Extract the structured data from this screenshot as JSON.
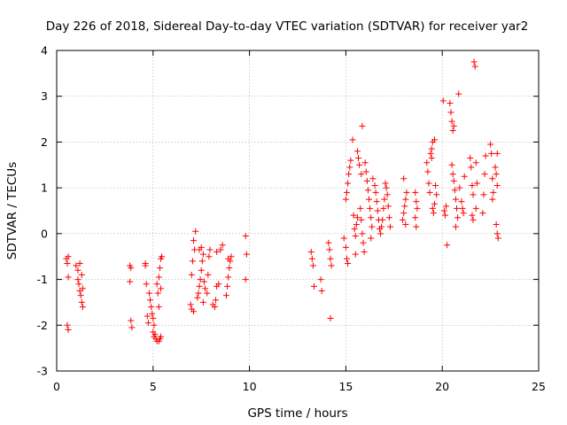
{
  "chart_data": {
    "type": "scatter",
    "title": "Day 226 of 2018, Sidereal Day-to-day VTEC variation (SDTVAR) for receiver yar2",
    "xlabel": "GPS time / hours",
    "ylabel": "SDTVAR / TECUs",
    "xlim": [
      0,
      25
    ],
    "ylim": [
      -3,
      4
    ],
    "xticks": [
      0,
      5,
      10,
      15,
      20,
      25
    ],
    "yticks": [
      -3,
      -2,
      -1,
      0,
      1,
      2,
      3,
      4
    ],
    "grid": true,
    "marker": "+",
    "color": "#ff0000",
    "series": [
      {
        "name": "SDTVAR",
        "points": [
          [
            0.5,
            -0.55
          ],
          [
            0.55,
            -0.65
          ],
          [
            0.6,
            -0.5
          ],
          [
            0.6,
            -0.95
          ],
          [
            0.55,
            -2.0
          ],
          [
            0.6,
            -2.1
          ],
          [
            1.0,
            -0.7
          ],
          [
            1.1,
            -0.8
          ],
          [
            1.1,
            -1.0
          ],
          [
            1.15,
            -1.1
          ],
          [
            1.2,
            -1.25
          ],
          [
            1.25,
            -1.35
          ],
          [
            1.3,
            -1.5
          ],
          [
            1.35,
            -1.6
          ],
          [
            1.2,
            -0.65
          ],
          [
            1.3,
            -0.9
          ],
          [
            1.35,
            -1.2
          ],
          [
            3.8,
            -0.7
          ],
          [
            3.85,
            -0.75
          ],
          [
            3.8,
            -1.05
          ],
          [
            3.85,
            -1.9
          ],
          [
            3.9,
            -2.05
          ],
          [
            4.6,
            -0.65
          ],
          [
            4.6,
            -0.7
          ],
          [
            4.65,
            -1.1
          ],
          [
            4.7,
            -1.8
          ],
          [
            4.75,
            -1.95
          ],
          [
            4.8,
            -1.3
          ],
          [
            4.85,
            -1.45
          ],
          [
            4.9,
            -1.6
          ],
          [
            4.95,
            -1.75
          ],
          [
            5.0,
            -1.85
          ],
          [
            5.05,
            -2.0
          ],
          [
            5.0,
            -2.15
          ],
          [
            5.05,
            -2.25
          ],
          [
            5.1,
            -2.2
          ],
          [
            5.15,
            -2.3
          ],
          [
            5.2,
            -2.35
          ],
          [
            5.3,
            -2.35
          ],
          [
            5.35,
            -2.3
          ],
          [
            5.4,
            -2.25
          ],
          [
            5.2,
            -1.1
          ],
          [
            5.25,
            -1.3
          ],
          [
            5.3,
            -0.95
          ],
          [
            5.35,
            -0.75
          ],
          [
            5.4,
            -0.55
          ],
          [
            5.45,
            -0.5
          ],
          [
            5.3,
            -1.6
          ],
          [
            5.4,
            -1.2
          ],
          [
            6.95,
            -1.55
          ],
          [
            7.0,
            -1.65
          ],
          [
            7.1,
            -1.7
          ],
          [
            7.0,
            -0.9
          ],
          [
            7.05,
            -0.6
          ],
          [
            7.15,
            -0.35
          ],
          [
            7.1,
            -0.15
          ],
          [
            7.2,
            0.05
          ],
          [
            7.3,
            -1.4
          ],
          [
            7.35,
            -1.3
          ],
          [
            7.4,
            -1.15
          ],
          [
            7.45,
            -1.0
          ],
          [
            7.5,
            -0.8
          ],
          [
            7.55,
            -0.6
          ],
          [
            7.4,
            -0.35
          ],
          [
            7.5,
            -0.3
          ],
          [
            7.6,
            -0.45
          ],
          [
            7.65,
            -1.05
          ],
          [
            7.7,
            -1.2
          ],
          [
            7.8,
            -1.3
          ],
          [
            7.85,
            -0.9
          ],
          [
            7.9,
            -0.5
          ],
          [
            7.95,
            -0.35
          ],
          [
            7.6,
            -1.5
          ],
          [
            8.1,
            -1.55
          ],
          [
            8.2,
            -1.6
          ],
          [
            8.25,
            -1.45
          ],
          [
            8.3,
            -1.15
          ],
          [
            8.4,
            -1.1
          ],
          [
            8.5,
            -0.35
          ],
          [
            8.6,
            -0.25
          ],
          [
            8.3,
            -0.4
          ],
          [
            8.8,
            -1.35
          ],
          [
            8.85,
            -1.15
          ],
          [
            8.9,
            -0.95
          ],
          [
            8.95,
            -0.75
          ],
          [
            9.0,
            -0.6
          ],
          [
            9.05,
            -0.5
          ],
          [
            8.9,
            -0.55
          ],
          [
            9.8,
            -0.05
          ],
          [
            9.85,
            -0.45
          ],
          [
            9.8,
            -1.0
          ],
          [
            13.2,
            -0.4
          ],
          [
            13.25,
            -0.55
          ],
          [
            13.3,
            -0.7
          ],
          [
            13.35,
            -1.15
          ],
          [
            13.7,
            -1.0
          ],
          [
            13.75,
            -1.25
          ],
          [
            14.1,
            -0.2
          ],
          [
            14.15,
            -0.35
          ],
          [
            14.2,
            -0.55
          ],
          [
            14.25,
            -0.7
          ],
          [
            14.2,
            -1.85
          ],
          [
            14.9,
            -0.1
          ],
          [
            15.0,
            -0.3
          ],
          [
            15.05,
            -0.55
          ],
          [
            15.1,
            -0.65
          ],
          [
            15.0,
            0.75
          ],
          [
            15.05,
            0.9
          ],
          [
            15.1,
            1.1
          ],
          [
            15.15,
            1.3
          ],
          [
            15.2,
            1.45
          ],
          [
            15.25,
            1.6
          ],
          [
            15.35,
            2.05
          ],
          [
            15.4,
            0.4
          ],
          [
            15.45,
            0.1
          ],
          [
            15.5,
            -0.05
          ],
          [
            15.55,
            0.2
          ],
          [
            15.6,
            0.35
          ],
          [
            15.5,
            -0.45
          ],
          [
            15.6,
            1.8
          ],
          [
            15.65,
            1.65
          ],
          [
            15.7,
            1.5
          ],
          [
            15.8,
            1.3
          ],
          [
            15.75,
            0.55
          ],
          [
            15.8,
            0.3
          ],
          [
            15.85,
            0.0
          ],
          [
            15.9,
            -0.2
          ],
          [
            15.95,
            -0.4
          ],
          [
            15.85,
            2.35
          ],
          [
            16.0,
            1.55
          ],
          [
            16.05,
            1.35
          ],
          [
            16.1,
            1.15
          ],
          [
            16.15,
            0.95
          ],
          [
            16.2,
            0.75
          ],
          [
            16.25,
            0.55
          ],
          [
            16.3,
            0.35
          ],
          [
            16.35,
            0.15
          ],
          [
            16.3,
            -0.1
          ],
          [
            16.4,
            1.2
          ],
          [
            16.5,
            1.05
          ],
          [
            16.55,
            0.9
          ],
          [
            16.6,
            0.7
          ],
          [
            16.65,
            0.5
          ],
          [
            16.7,
            0.3
          ],
          [
            16.75,
            0.1
          ],
          [
            16.8,
            0.0
          ],
          [
            16.85,
            0.15
          ],
          [
            16.9,
            0.3
          ],
          [
            16.95,
            0.55
          ],
          [
            17.0,
            0.75
          ],
          [
            17.05,
            1.1
          ],
          [
            17.1,
            1.0
          ],
          [
            17.15,
            0.85
          ],
          [
            17.2,
            0.6
          ],
          [
            17.25,
            0.35
          ],
          [
            17.3,
            0.15
          ],
          [
            17.95,
            0.3
          ],
          [
            18.0,
            0.45
          ],
          [
            18.05,
            0.6
          ],
          [
            18.1,
            0.75
          ],
          [
            18.15,
            0.9
          ],
          [
            18.0,
            1.2
          ],
          [
            18.1,
            0.2
          ],
          [
            18.6,
            0.9
          ],
          [
            18.65,
            0.7
          ],
          [
            18.7,
            0.55
          ],
          [
            18.6,
            0.35
          ],
          [
            18.65,
            0.15
          ],
          [
            19.2,
            1.55
          ],
          [
            19.25,
            1.35
          ],
          [
            19.3,
            1.1
          ],
          [
            19.35,
            0.9
          ],
          [
            19.4,
            1.75
          ],
          [
            19.45,
            1.85
          ],
          [
            19.5,
            2.0
          ],
          [
            19.6,
            2.05
          ],
          [
            19.5,
            0.55
          ],
          [
            19.55,
            0.45
          ],
          [
            19.6,
            0.65
          ],
          [
            19.65,
            1.05
          ],
          [
            19.7,
            0.85
          ],
          [
            19.45,
            1.65
          ],
          [
            20.05,
            2.9
          ],
          [
            20.1,
            0.5
          ],
          [
            20.15,
            0.4
          ],
          [
            20.2,
            0.6
          ],
          [
            20.25,
            -0.25
          ],
          [
            20.4,
            2.85
          ],
          [
            20.45,
            2.65
          ],
          [
            20.5,
            2.45
          ],
          [
            20.55,
            2.25
          ],
          [
            20.6,
            2.35
          ],
          [
            20.5,
            1.5
          ],
          [
            20.55,
            1.3
          ],
          [
            20.6,
            1.15
          ],
          [
            20.65,
            0.95
          ],
          [
            20.7,
            0.75
          ],
          [
            20.75,
            0.55
          ],
          [
            20.8,
            0.35
          ],
          [
            20.7,
            0.15
          ],
          [
            20.85,
            3.05
          ],
          [
            20.9,
            1.0
          ],
          [
            21.0,
            0.7
          ],
          [
            21.05,
            0.55
          ],
          [
            21.1,
            0.45
          ],
          [
            21.15,
            1.25
          ],
          [
            21.45,
            1.65
          ],
          [
            21.5,
            1.45
          ],
          [
            21.55,
            1.05
          ],
          [
            21.6,
            0.85
          ],
          [
            21.55,
            0.4
          ],
          [
            21.6,
            0.3
          ],
          [
            21.65,
            3.75
          ],
          [
            21.7,
            3.65
          ],
          [
            21.75,
            1.55
          ],
          [
            21.8,
            1.1
          ],
          [
            21.75,
            0.55
          ],
          [
            22.15,
            0.85
          ],
          [
            22.2,
            1.3
          ],
          [
            22.1,
            0.45
          ],
          [
            22.25,
            1.7
          ],
          [
            22.5,
            1.95
          ],
          [
            22.55,
            1.75
          ],
          [
            22.6,
            1.2
          ],
          [
            22.65,
            0.9
          ],
          [
            22.6,
            0.75
          ],
          [
            22.75,
            1.45
          ],
          [
            22.8,
            1.3
          ],
          [
            22.85,
            1.05
          ],
          [
            22.8,
            0.2
          ],
          [
            22.85,
            0.0
          ],
          [
            22.9,
            -0.1
          ],
          [
            22.85,
            1.75
          ]
        ]
      }
    ]
  }
}
